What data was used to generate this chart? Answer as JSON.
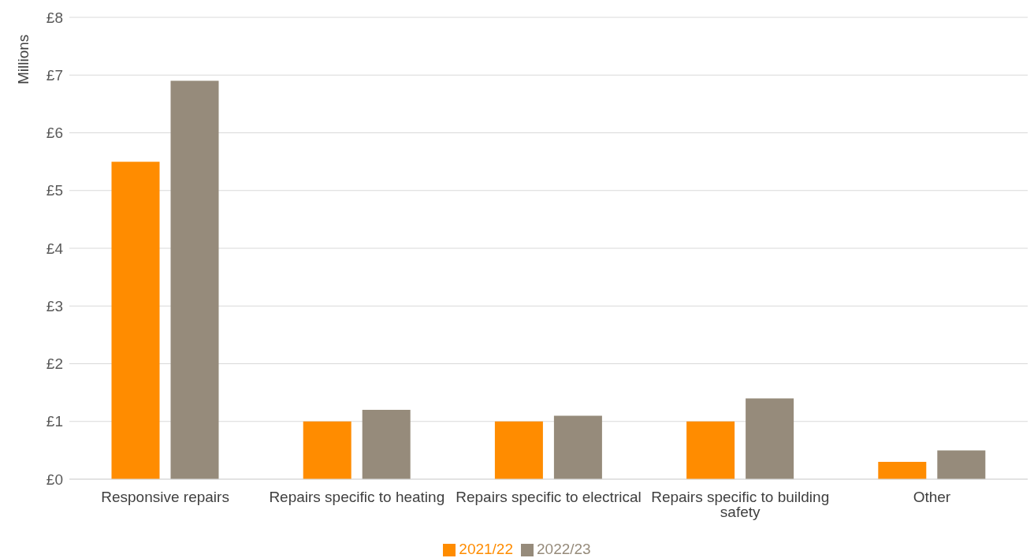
{
  "chart_data": {
    "type": "bar",
    "ylabel": "Millions",
    "categories": [
      "Responsive repairs",
      "Repairs specific to heating",
      "Repairs specific to electrical",
      "Repairs specific to building safety",
      "Other"
    ],
    "series": [
      {
        "name": "2021/22",
        "color": "#ff8c00",
        "values": [
          5.5,
          1.0,
          1.0,
          1.0,
          0.3
        ]
      },
      {
        "name": "2022/23",
        "color": "#968b7b",
        "values": [
          6.9,
          1.2,
          1.1,
          1.4,
          0.5
        ]
      }
    ],
    "ylim": [
      0,
      8
    ],
    "yticks": [
      {
        "value": 0,
        "label": "£0"
      },
      {
        "value": 1,
        "label": "£1"
      },
      {
        "value": 2,
        "label": "£2"
      },
      {
        "value": 3,
        "label": "£3"
      },
      {
        "value": 4,
        "label": "£4"
      },
      {
        "value": 5,
        "label": "£5"
      },
      {
        "value": 6,
        "label": "£6"
      },
      {
        "value": 7,
        "label": "£7"
      },
      {
        "value": 8,
        "label": "£8"
      }
    ],
    "grid": "y",
    "legend": "bottom"
  }
}
